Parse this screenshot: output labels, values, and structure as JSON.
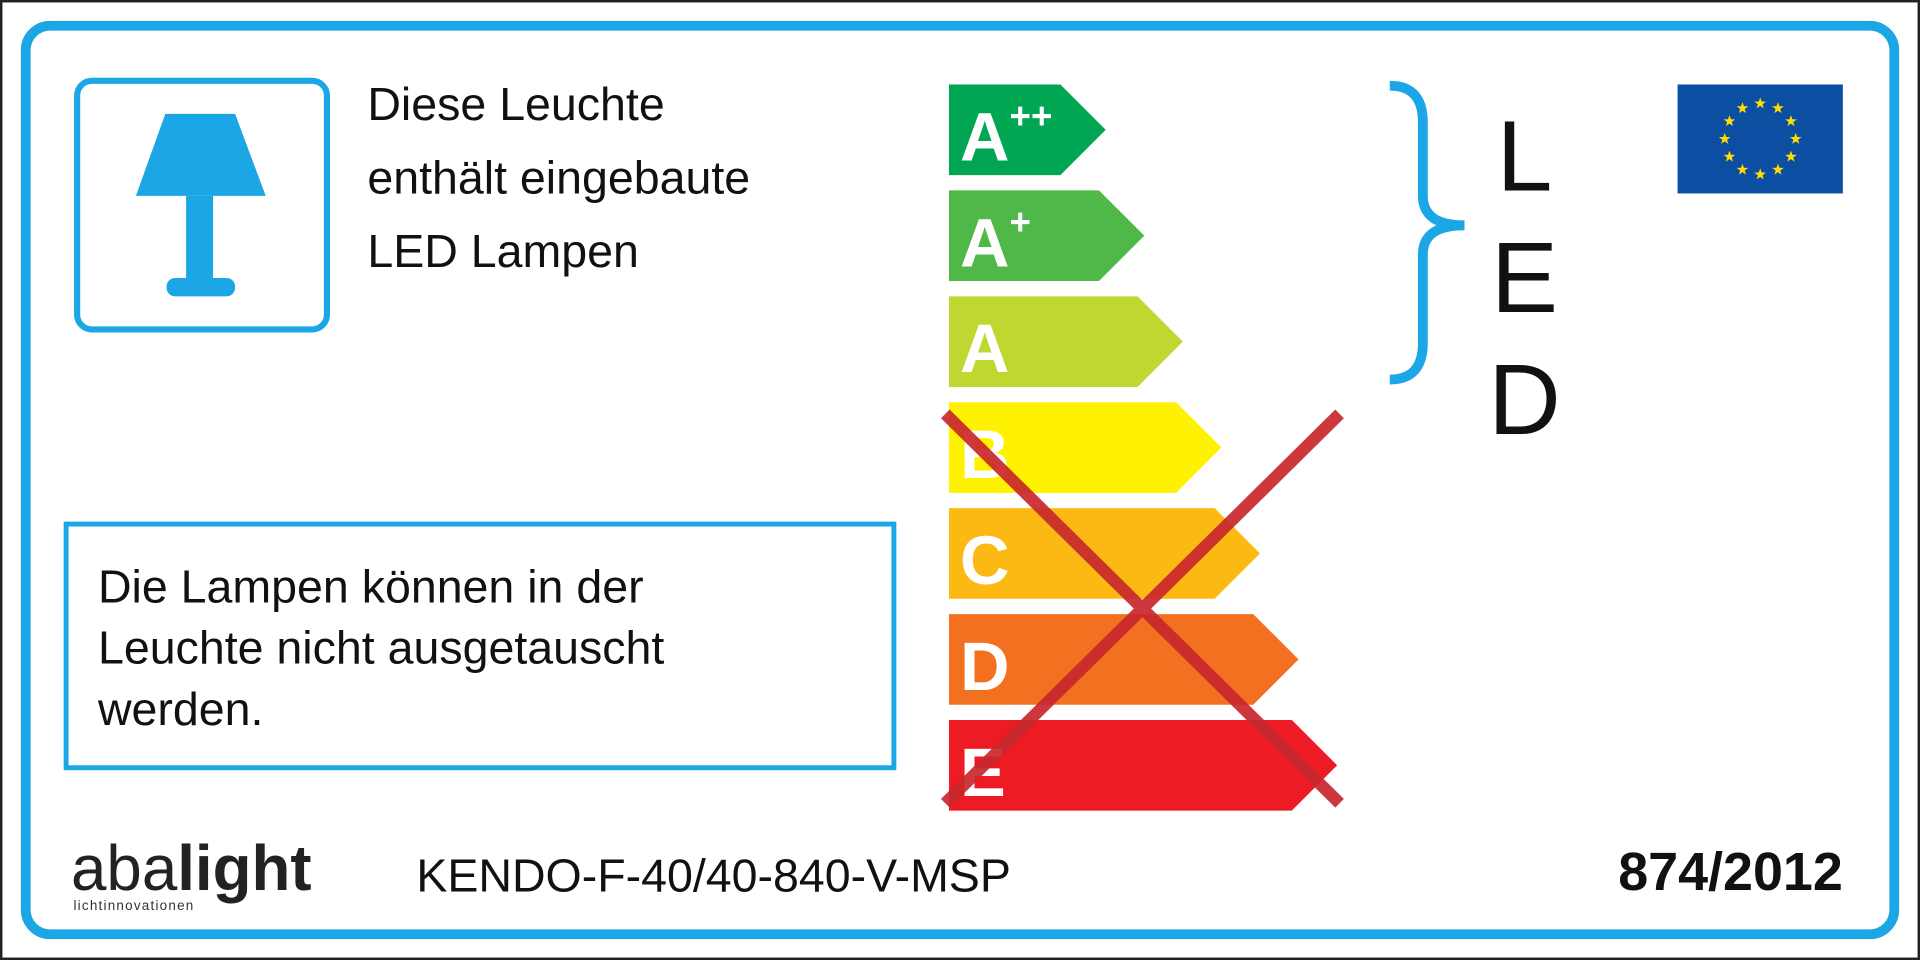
{
  "header": {
    "lines": [
      "Diese Leuchte",
      "enthält eingebaute",
      "LED Lampen"
    ]
  },
  "classes": [
    {
      "letter": "A",
      "sup": "++",
      "color": "#00a651"
    },
    {
      "letter": "A",
      "sup": "+",
      "color": "#50b848"
    },
    {
      "letter": "A",
      "color": "#bfd730"
    },
    {
      "letter": "B",
      "color": "#fff200"
    },
    {
      "letter": "C",
      "color": "#fdb913"
    },
    {
      "letter": "D",
      "color": "#f37021"
    },
    {
      "letter": "E",
      "color": "#ed1c24"
    }
  ],
  "lamp_type": "LED",
  "notice": {
    "lines": [
      "Die Lampen können in der",
      "Leuchte nicht ausgetauscht",
      "werden."
    ]
  },
  "brand": {
    "prefix": "aba",
    "name": "light",
    "tagline": "lichtinnovationen"
  },
  "model": "KENDO-F-40/40-840-V-MSP",
  "regulation": "874/2012"
}
